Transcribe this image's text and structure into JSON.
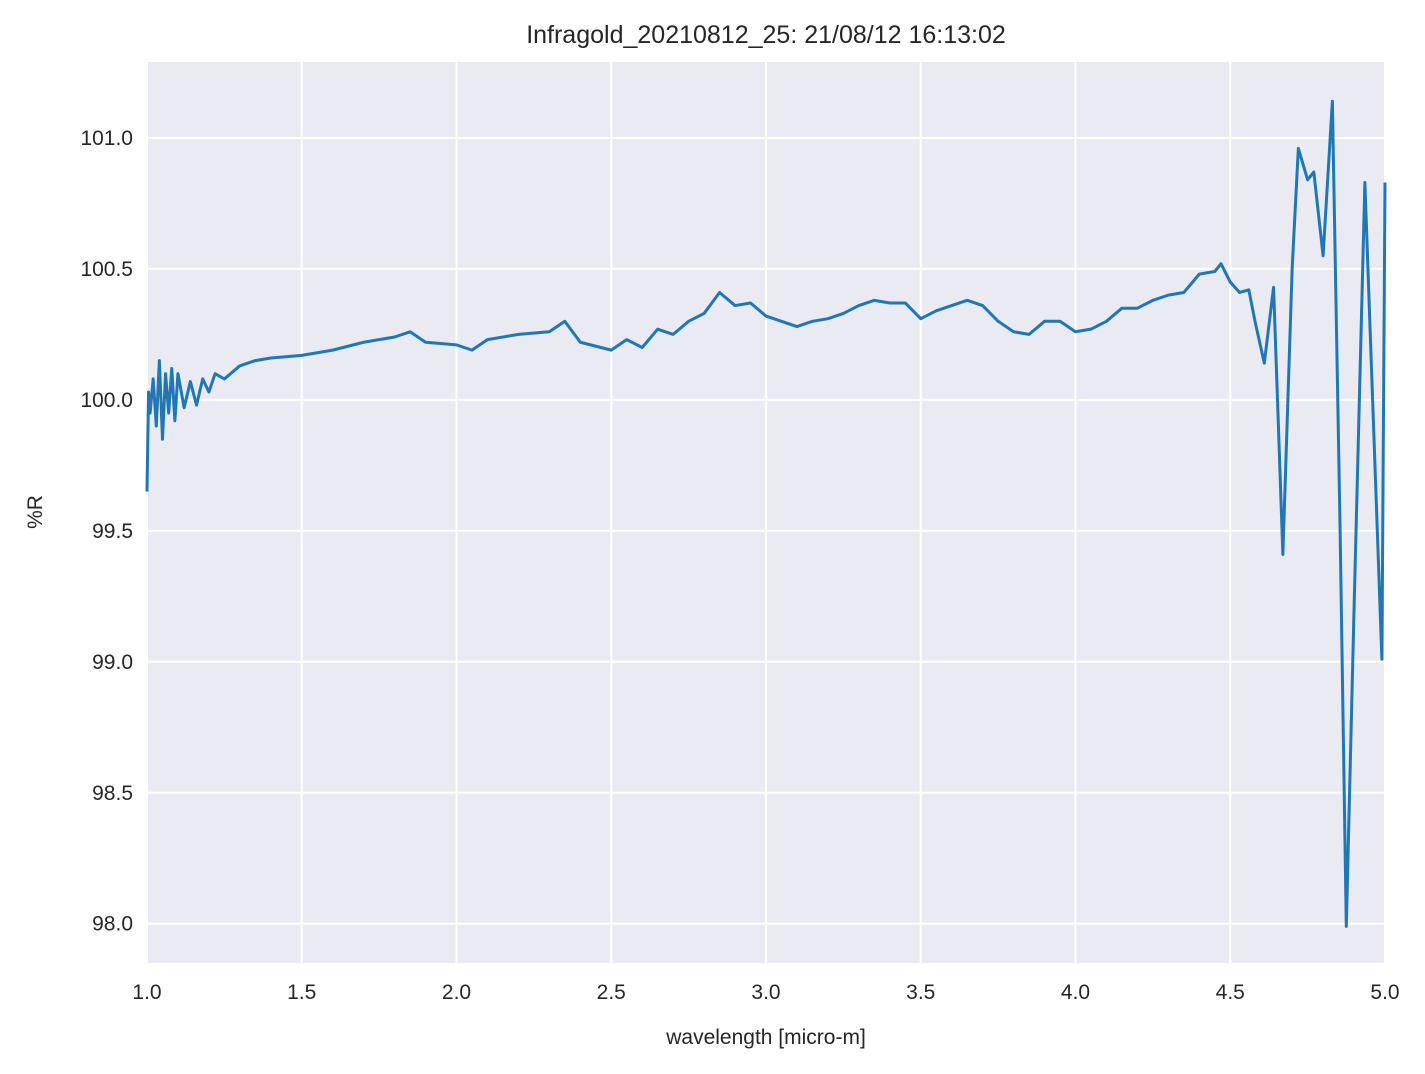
{
  "chart_data": {
    "type": "line",
    "title": "Infragold_20210812_25:  21/08/12 16:13:02",
    "xlabel": "wavelength [micro-m]",
    "ylabel": "%R",
    "xlim": [
      1.0,
      5.0
    ],
    "ylim": [
      97.85,
      101.29
    ],
    "xticks": [
      {
        "value": 1.0,
        "label": "1.0"
      },
      {
        "value": 1.5,
        "label": "1.5"
      },
      {
        "value": 2.0,
        "label": "2.0"
      },
      {
        "value": 2.5,
        "label": "2.5"
      },
      {
        "value": 3.0,
        "label": "3.0"
      },
      {
        "value": 3.5,
        "label": "3.5"
      },
      {
        "value": 4.0,
        "label": "4.0"
      },
      {
        "value": 4.5,
        "label": "4.5"
      },
      {
        "value": 5.0,
        "label": "5.0"
      }
    ],
    "yticks": [
      {
        "value": 98.0,
        "label": "98.0"
      },
      98.5,
      {
        "value": 99.0,
        "label": "99.0"
      },
      99.5,
      {
        "value": 100.0,
        "label": "100.0"
      },
      100.5,
      {
        "value": 101.0,
        "label": "101.0"
      }
    ],
    "grid": true,
    "series": [
      {
        "name": "%R",
        "color": "#1f77b4",
        "x": [
          1.0,
          1.005,
          1.01,
          1.02,
          1.03,
          1.04,
          1.05,
          1.06,
          1.07,
          1.08,
          1.09,
          1.1,
          1.12,
          1.14,
          1.16,
          1.18,
          1.2,
          1.22,
          1.25,
          1.3,
          1.35,
          1.4,
          1.5,
          1.6,
          1.7,
          1.8,
          1.85,
          1.9,
          2.0,
          2.05,
          2.1,
          2.2,
          2.3,
          2.35,
          2.4,
          2.5,
          2.55,
          2.6,
          2.65,
          2.7,
          2.75,
          2.8,
          2.85,
          2.9,
          2.95,
          3.0,
          3.05,
          3.1,
          3.15,
          3.2,
          3.25,
          3.3,
          3.35,
          3.4,
          3.45,
          3.5,
          3.55,
          3.6,
          3.65,
          3.7,
          3.75,
          3.8,
          3.85,
          3.9,
          3.95,
          4.0,
          4.05,
          4.1,
          4.15,
          4.2,
          4.25,
          4.3,
          4.35,
          4.4,
          4.45,
          4.47,
          4.5,
          4.53,
          4.56,
          4.58,
          4.61,
          4.64,
          4.67,
          4.7,
          4.72,
          4.75,
          4.77,
          4.8,
          4.83,
          4.855,
          4.875,
          4.9,
          4.935,
          4.96,
          4.99,
          5.0
        ],
        "values": [
          99.65,
          100.03,
          99.95,
          100.08,
          99.9,
          100.15,
          99.85,
          100.1,
          99.95,
          100.12,
          99.92,
          100.1,
          99.97,
          100.07,
          99.98,
          100.08,
          100.03,
          100.1,
          100.08,
          100.13,
          100.15,
          100.16,
          100.17,
          100.19,
          100.22,
          100.24,
          100.26,
          100.22,
          100.21,
          100.19,
          100.23,
          100.25,
          100.26,
          100.3,
          100.22,
          100.19,
          100.23,
          100.2,
          100.27,
          100.25,
          100.3,
          100.33,
          100.41,
          100.36,
          100.37,
          100.32,
          100.3,
          100.28,
          100.3,
          100.31,
          100.33,
          100.36,
          100.38,
          100.37,
          100.37,
          100.31,
          100.34,
          100.36,
          100.38,
          100.36,
          100.3,
          100.26,
          100.25,
          100.3,
          100.3,
          100.26,
          100.27,
          100.3,
          100.35,
          100.35,
          100.38,
          100.4,
          100.41,
          100.48,
          100.49,
          100.52,
          100.45,
          100.41,
          100.42,
          100.3,
          100.14,
          100.43,
          99.41,
          100.5,
          100.96,
          100.84,
          100.87,
          100.55,
          101.14,
          99.5,
          97.99,
          99.2,
          100.83,
          100.0,
          99.01,
          100.83
        ]
      }
    ]
  }
}
